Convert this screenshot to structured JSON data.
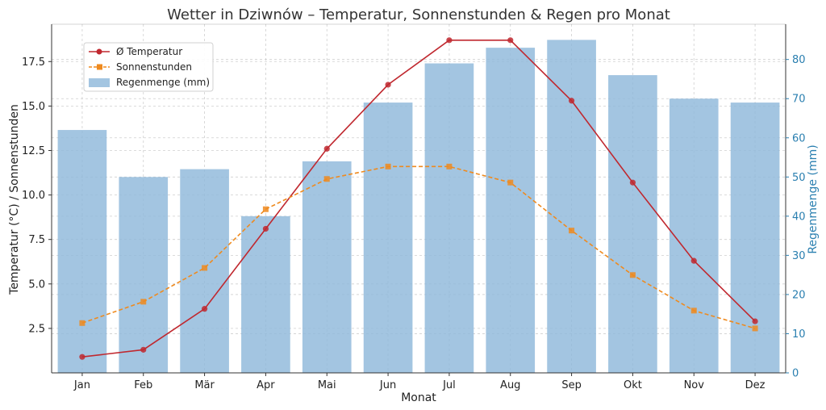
{
  "chart_data": {
    "type": "bar",
    "title": "Wetter in Dziwnów – Temperatur, Sonnenstunden & Regen pro Monat",
    "xlabel": "Monat",
    "ylabel": "Temperatur (°C) / Sonnenstunden",
    "ylabel_right": "Regenmenge (mm)",
    "categories": [
      "Jan",
      "Feb",
      "Mär",
      "Apr",
      "Mai",
      "Jun",
      "Jul",
      "Aug",
      "Sep",
      "Okt",
      "Nov",
      "Dez"
    ],
    "ylim": [
      0,
      19.6
    ],
    "ylim_right": [
      0,
      89
    ],
    "yticks": [
      "2.5",
      "5.0",
      "7.5",
      "10.0",
      "12.5",
      "15.0",
      "17.5"
    ],
    "yticks_right": [
      "0",
      "10",
      "20",
      "30",
      "40",
      "50",
      "60",
      "70",
      "80"
    ],
    "grid": true,
    "legend_position": "top-left",
    "series": [
      {
        "name": "Ø Temperatur",
        "kind": "line",
        "axis": "left",
        "color": "#c0282f",
        "marker": "circle",
        "values": [
          0.9,
          1.3,
          3.6,
          8.1,
          12.6,
          16.2,
          18.7,
          18.7,
          15.3,
          10.7,
          6.3,
          2.9
        ]
      },
      {
        "name": "Sonnenstunden",
        "kind": "line",
        "axis": "left",
        "color": "#ef8a1e",
        "marker": "square",
        "dashed": true,
        "values": [
          2.8,
          4.0,
          5.9,
          9.2,
          10.9,
          11.6,
          11.6,
          10.7,
          8.0,
          5.5,
          3.5,
          2.5
        ]
      },
      {
        "name": "Regenmenge (mm)",
        "kind": "bar",
        "axis": "right",
        "color": "#8fb8da",
        "values": [
          62,
          50,
          52,
          40,
          54,
          69,
          79,
          83,
          85,
          76,
          70,
          69
        ]
      }
    ]
  }
}
